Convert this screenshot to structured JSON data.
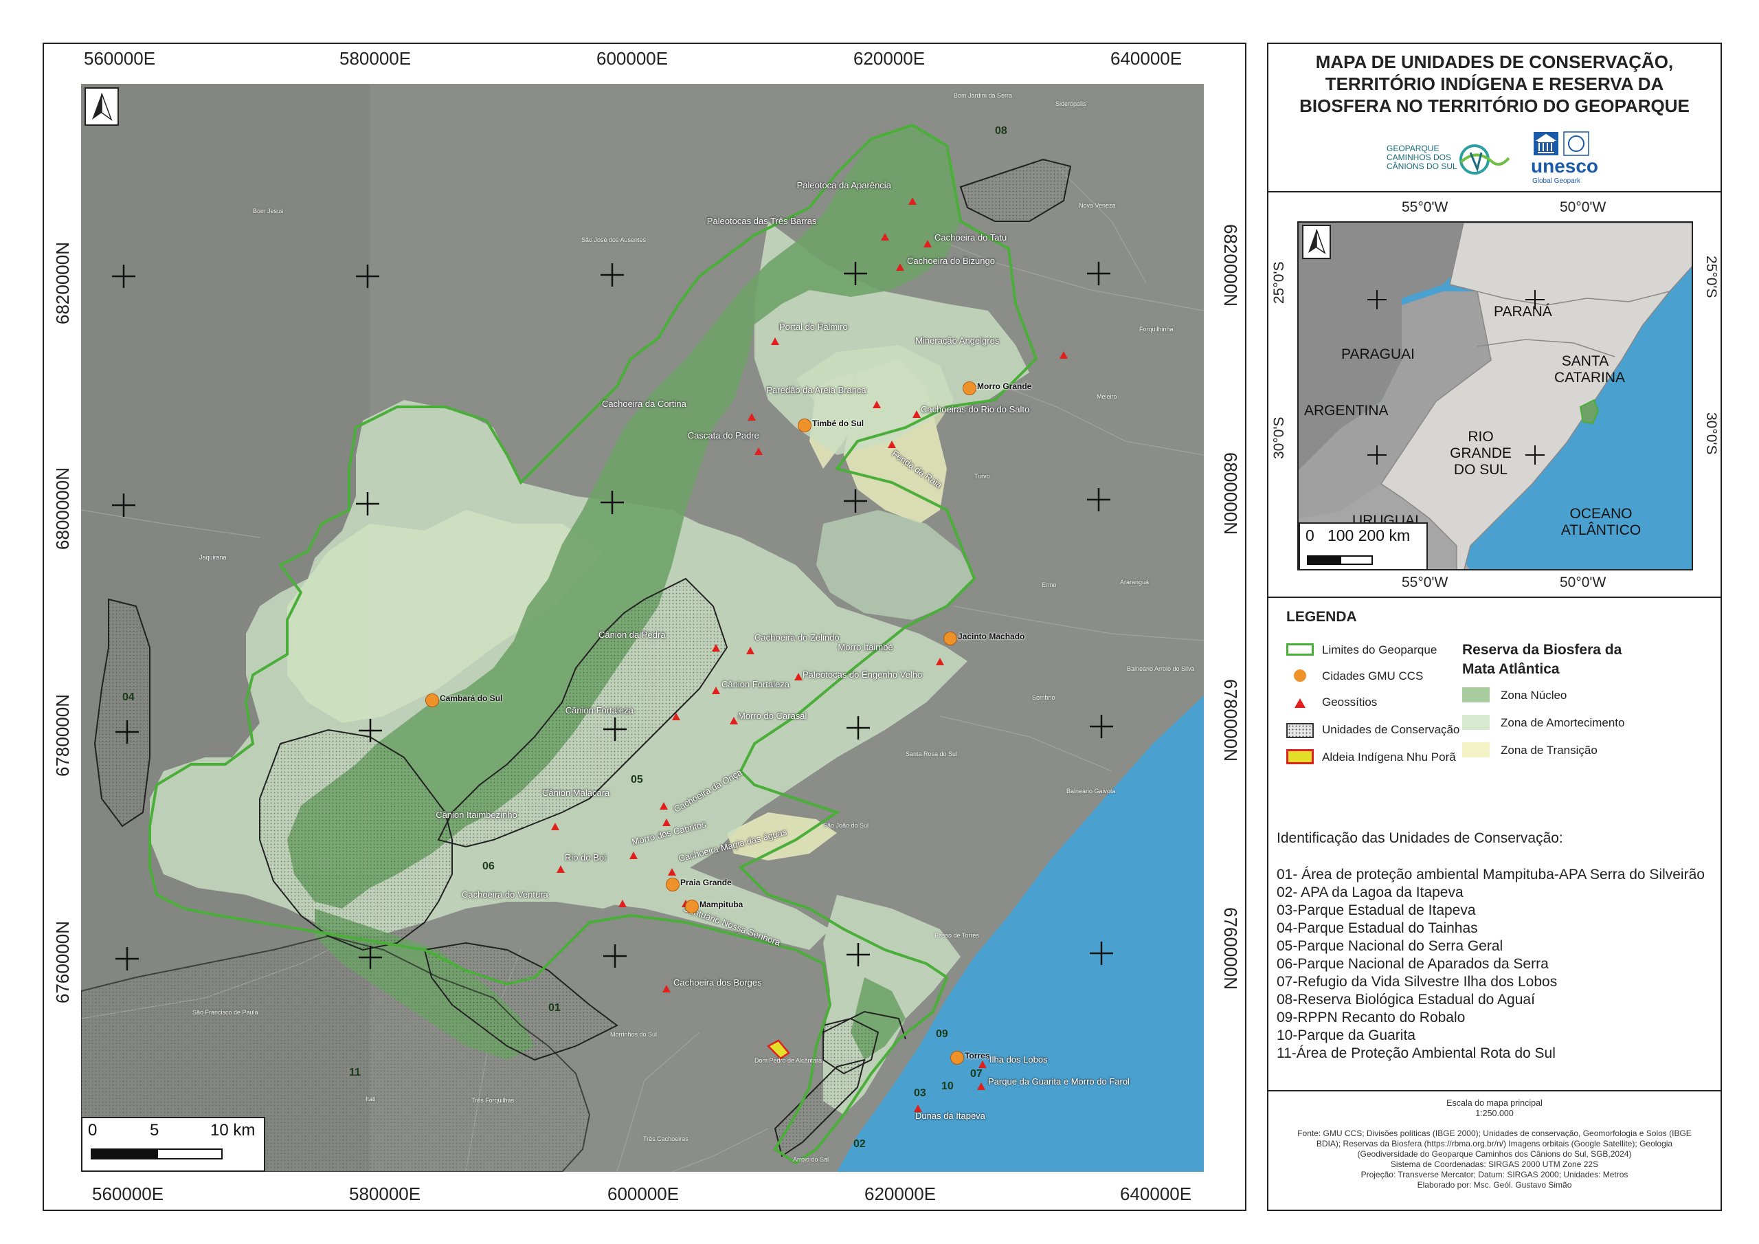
{
  "title": [
    "MAPA DE UNIDADES DE CONSERVAÇÃO,",
    "TERRITÓRIO INDÍGENA E RESERVA DA",
    "BIOSFERA NO TERRITÓRIO DO GEOPARQUE"
  ],
  "logos": {
    "geoparque": [
      "GEOPARQUE",
      "CAMINHOS DOS",
      "CÂNIONS DO SUL"
    ],
    "unesco": "unesco",
    "unesco_sub": "Global Geopark"
  },
  "main_map": {
    "x_ticks": [
      "560000E",
      "580000E",
      "600000E",
      "620000E",
      "640000E"
    ],
    "y_ticks": [
      "6820000N",
      "6800000N",
      "6780000N",
      "6760000N"
    ],
    "scale_bar": {
      "labels": [
        "0",
        "5",
        "10 km"
      ]
    },
    "uc_numbers": [
      "08",
      "04",
      "05",
      "06",
      "01",
      "11",
      "09",
      "07",
      "03",
      "10",
      "02"
    ],
    "cities": [
      "Morro Grande",
      "Timbé do Sul",
      "Jacinto Machado",
      "Cambará do Sul",
      "Praia Grande",
      "Mampituba",
      "Torres"
    ],
    "geosites": [
      "Paleotoca da Aparência",
      "Paleotocas das Três Barras",
      "Cachoeira do Tatu",
      "Cachoeira do Bizungo",
      "Portal do Palmiro",
      "Mineração Angelgres",
      "Paredão da Areia Branca",
      "Cachoeiras do Rio do Salto",
      "Cachoeira da Cortina",
      "Cascata do Padre",
      "Fenda da Raia",
      "Cânion da Pedra",
      "Cachoeira do Zelindo",
      "Morro Itaimbé",
      "Paleotocas do Engenho Velho",
      "Cânion Fortaleza",
      "Cânion Fortaleza",
      "Morro do Carasal",
      "Cânion Malacara",
      "Cachoeira da Onça",
      "Cânion Itaimbezinho",
      "Morro dos Cabritos",
      "Rio do Boi",
      "Cachoeira Magia das águas",
      "Cachoeira do Ventura",
      "Santuário Nossa Senhora",
      "Cachoeira dos Borges",
      "Ilha dos Lobos",
      "Parque da Guarita e Morro do Farol",
      "Dunas da Itapeva"
    ],
    "places": [
      "Bom Jardim da Serra",
      "Siderópolis",
      "Bom Jesus",
      "São José dos Ausentes",
      "Nova Veneza",
      "Forquilhinha",
      "Meleiro",
      "Turvo",
      "Ermo",
      "Araranguá",
      "Jaquirana",
      "Balneário Arroio do Silva",
      "Sombrio",
      "Santa Rosa do Sul",
      "Balneário Gaivota",
      "São João do Sul",
      "Passo de Torres",
      "São Francisco de Paula",
      "Morrinhos do Sul",
      "Dom Pedro de Alcântara",
      "Itati",
      "Três Forquilhas",
      "Três Cachoeiras",
      "Arroio do Sal"
    ]
  },
  "inset_map": {
    "x_ticks": [
      "55°0'W",
      "50°0'W"
    ],
    "y_ticks": [
      "25°0'S",
      "30°0'S"
    ],
    "regions": [
      "PARANÁ",
      "PARAGUAI",
      "SANTA",
      "CATARINA",
      "ARGENTINA",
      "RIO GRANDE",
      "DO SUL",
      "URUGUAI",
      "OCEANO",
      "ATLÂNTICO"
    ],
    "scale_labels": "0   100 200 km"
  },
  "legend": {
    "heading": "LEGENDA",
    "items": [
      "Limites do Geoparque",
      "Cidades GMU CCS",
      "Geossítios",
      "Unidades de Conservação",
      "Aldeia Indígena Nhu Porã"
    ],
    "biosphere_heading": [
      "Reserva da Biosfera da",
      "Mata Atlântica"
    ],
    "biosphere_items": [
      "Zona Núcleo",
      "Zona de Amortecimento",
      "Zona de Transição"
    ]
  },
  "uc_heading": "Identificação das Unidades de Conservação:",
  "uc_list": [
    "01- Área de proteção ambiental Mampituba-APA Serra do Silveirão",
    "02- APA da Lagoa da Itapeva",
    "03-Parque Estadual de Itapeva",
    "04-Parque Estadual do Tainhas",
    "05-Parque Nacional do Serra Geral",
    "06-Parque Nacional de Aparados da Serra",
    "07-Refugio da Vida Silvestre Ilha dos Lobos",
    "08-Reserva Biológica Estadual do Aguaí",
    "09-RPPN Recanto do Robalo",
    "10-Parque da Guarita",
    "11-Área de Proteção Ambiental Rota do Sul"
  ],
  "credits": [
    "Escala do mapa principal",
    "1:250.000",
    "Fonte: GMU CCS; Divisões políticas (IBGE 2000); Unidades de conservação, Geomorfologia e Solos (IBGE",
    "BDIA); Reservas da Biosfera (https://rbma.org.br/n/) Imagens orbitais (Google Satellite); Geologia",
    "(Geodiversidade do Geoparque Caminhos dos Cânions do Sul, SGB,2024)",
    "Sistema de Coordenadas: SIRGAS 2000 UTM Zone 22S",
    "Projeção: Transverse Mercator; Datum: SIRGAS 2000; Unidades: Metros",
    "Elaborado por: Msc. Geól. Gustavo Simão"
  ],
  "colors": {
    "ocean": "#4aa0cf",
    "terrain": "#8a8d88",
    "zona_nucleo": "#7fae78",
    "zona_amortecimento": "#c9dfc2",
    "zona_transicao": "#e8ecbc",
    "geoparque_boundary": "#4cae3a",
    "city": "#f0922a",
    "geosite": "#e0201d"
  }
}
